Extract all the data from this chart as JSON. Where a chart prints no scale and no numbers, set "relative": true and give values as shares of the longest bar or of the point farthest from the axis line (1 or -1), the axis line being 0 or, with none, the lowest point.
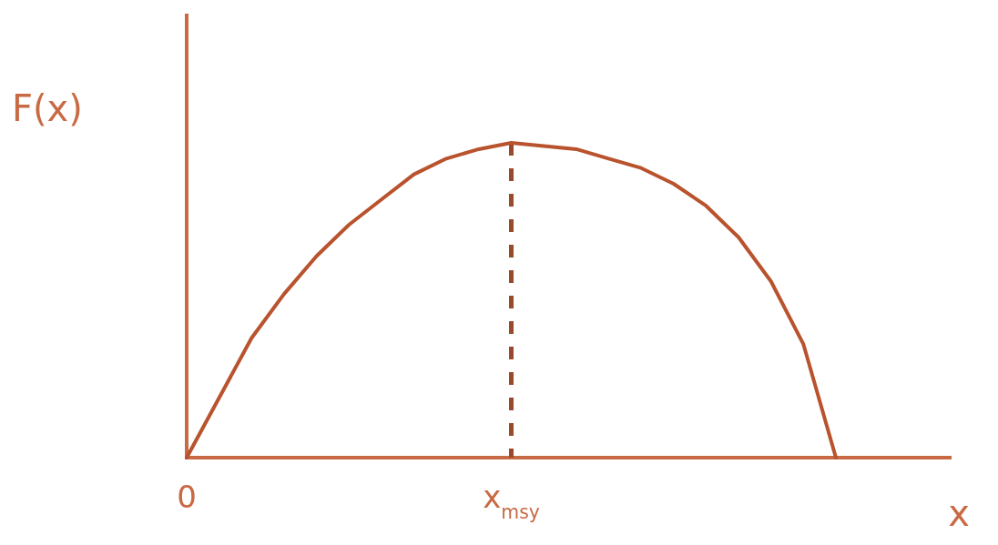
{
  "chart_data": {
    "type": "line",
    "relative": true,
    "xlabel": "x",
    "ylabel": "F(x)",
    "marker": "none",
    "line_style": "solid",
    "categories": [
      "0",
      null,
      null,
      null,
      null,
      null,
      null,
      null,
      null,
      null,
      "x$_{msy}$",
      null,
      null,
      null,
      null,
      null,
      null,
      null,
      null,
      null,
      null
    ],
    "series": [
      {
        "color": "#b8532e",
        "values": [
          0,
          0.19,
          0.38,
          0.52,
          0.64,
          0.74,
          0.82,
          0.9,
          0.95,
          0.98,
          1,
          0.99,
          0.98,
          0.95,
          0.92,
          0.87,
          0.8,
          0.7,
          0.56,
          0.36,
          0
        ]
      }
    ],
    "ref_lines": [
      {
        "axis": "x",
        "value": "x$_{msy}$",
        "line_style": "dashed",
        "color": "#9a4a2c"
      }
    ]
  }
}
